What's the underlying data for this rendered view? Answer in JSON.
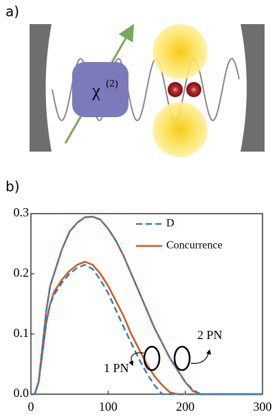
{
  "panel_a": {
    "label": "a)",
    "crystal": {
      "symbol": "χ",
      "superscript": "(2)"
    }
  },
  "panel_b": {
    "label": "b)"
  },
  "chart_data": {
    "type": "line",
    "x": [
      0,
      5,
      10,
      15,
      20,
      25,
      30,
      40,
      50,
      60,
      70,
      80,
      90,
      100,
      110,
      120,
      130,
      140,
      150,
      160,
      170,
      180,
      190,
      200,
      210,
      220,
      230,
      240,
      250,
      260,
      280,
      300
    ],
    "series": [
      {
        "name": "D",
        "color": "#2f7fc1",
        "style": "dashed",
        "curves": [
          [
            0,
            0,
            0.02,
            0.07,
            0.12,
            0.15,
            0.165,
            0.185,
            0.2,
            0.21,
            0.215,
            0.208,
            0.19,
            0.168,
            0.14,
            0.112,
            0.085,
            0.058,
            0.035,
            0.015,
            0,
            0,
            0,
            0,
            0,
            0,
            0,
            0,
            0,
            0,
            0,
            0
          ],
          [
            0,
            0,
            0.02,
            0.08,
            0.14,
            0.18,
            0.2,
            0.24,
            0.27,
            0.285,
            0.294,
            0.295,
            0.29,
            0.275,
            0.255,
            0.23,
            0.2,
            0.17,
            0.14,
            0.11,
            0.085,
            0.06,
            0.04,
            0.02,
            0.007,
            0,
            0,
            0,
            0,
            0,
            0,
            0
          ]
        ]
      },
      {
        "name": "Concurrence",
        "color": "#d95319",
        "style": "solid",
        "curves": [
          [
            0,
            0,
            0.02,
            0.07,
            0.12,
            0.15,
            0.17,
            0.19,
            0.205,
            0.215,
            0.22,
            0.215,
            0.2,
            0.18,
            0.155,
            0.13,
            0.1,
            0.075,
            0.05,
            0.03,
            0.015,
            0.003,
            0,
            0,
            0,
            0,
            0,
            0,
            0,
            0,
            0,
            0
          ],
          [
            0,
            0,
            0.02,
            0.08,
            0.14,
            0.18,
            0.2,
            0.24,
            0.27,
            0.285,
            0.294,
            0.295,
            0.29,
            0.275,
            0.255,
            0.23,
            0.2,
            0.17,
            0.14,
            0.11,
            0.085,
            0.06,
            0.04,
            0.02,
            0.005,
            0,
            0,
            0,
            0,
            0,
            0,
            0
          ]
        ]
      }
    ],
    "annotations": [
      "1 PN",
      "2 PN"
    ],
    "xlim": [
      0,
      300
    ],
    "xticks": [
      0,
      100,
      200,
      300
    ],
    "ylim": [
      0,
      0.3
    ],
    "yticks": [
      {
        "value": 0,
        "label": "0.0"
      },
      0.1,
      0.2,
      0.3
    ]
  }
}
